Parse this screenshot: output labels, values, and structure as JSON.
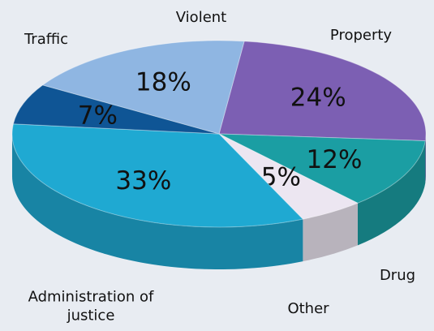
{
  "chart_data": {
    "type": "pie3d",
    "categories": [
      "Property",
      "Drug",
      "Other",
      "Administration of justice",
      "Traffic",
      "Violent"
    ],
    "values": [
      24,
      12,
      5,
      33,
      7,
      18
    ],
    "value_labels": [
      "24%",
      "12%",
      "5%",
      "33%",
      "7%",
      "18%"
    ],
    "colors": [
      "#7c5fb3",
      "#1b9ea3",
      "#ece6f1",
      "#1fa9d2",
      "#0f5595",
      "#8fb6e2"
    ]
  }
}
